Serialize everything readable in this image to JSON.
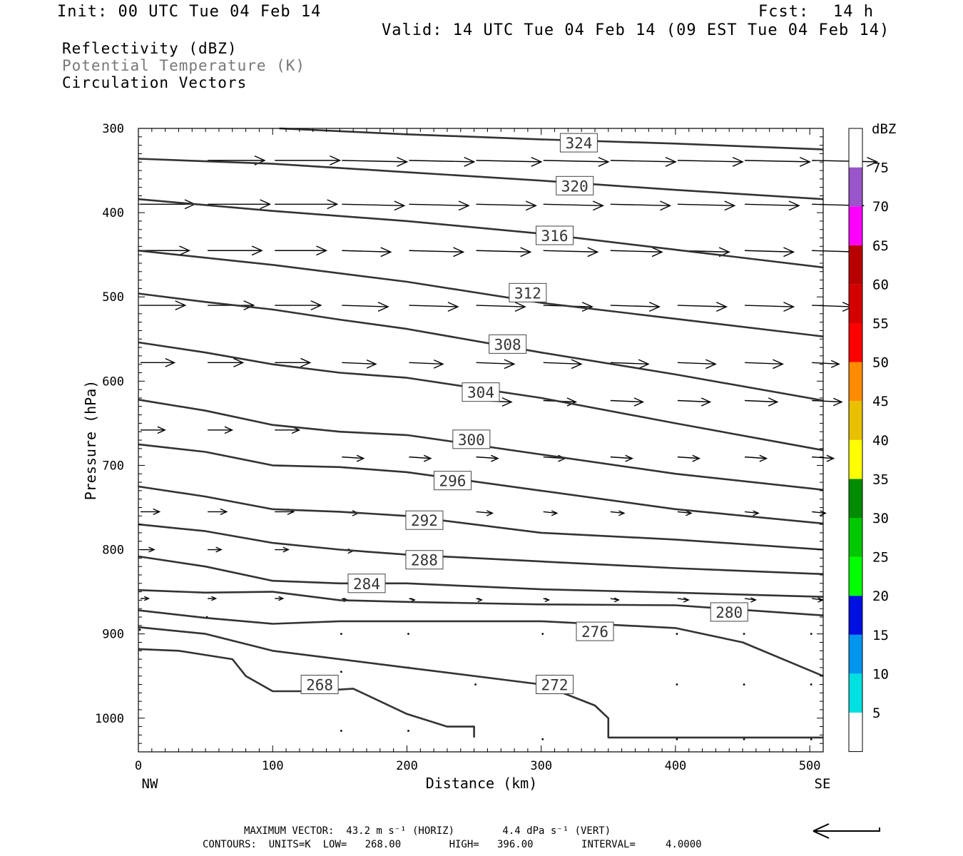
{
  "header": {
    "init": "Init: 00 UTC Tue 04 Feb 14",
    "fcst_label": "Fcst:",
    "fcst_value": "14 h",
    "valid": "Valid: 14 UTC Tue 04 Feb 14 (09 EST Tue 04 Feb 14)"
  },
  "legend": {
    "line1": "Reflectivity (dBZ)",
    "line2": "Potential Temperature (K)",
    "line3": "Circulation Vectors"
  },
  "footer": {
    "max_vector": "MAXIMUM VECTOR:  43.2 m s⁻¹ (HORIZ)        4.4 dPa s⁻¹ (VERT)",
    "contours": "CONTOURS:  UNITS=K  LOW=   268.00        HIGH=   396.00        INTERVAL=     4.0000"
  },
  "chart_data": {
    "type": "line",
    "xlabel": "Distance (km)",
    "ylabel": "Pressure (hPa)",
    "xlim": [
      0,
      510
    ],
    "ylim": [
      1040,
      300
    ],
    "x_ticks": [
      0,
      100,
      200,
      300,
      400,
      500
    ],
    "y_ticks": [
      300,
      400,
      500,
      600,
      700,
      800,
      900,
      1000
    ],
    "x_end_labels": {
      "left": "NW",
      "right": "SE"
    },
    "colorbar": {
      "title": "dBZ",
      "labels": [
        "5",
        "10",
        "15",
        "20",
        "25",
        "30",
        "35",
        "40",
        "45",
        "50",
        "55",
        "60",
        "65",
        "70",
        "75"
      ],
      "colors": [
        "#ffffff",
        "#00e0e0",
        "#0096f0",
        "#0010e0",
        "#00ff00",
        "#00c800",
        "#008c00",
        "#ffff00",
        "#e8c000",
        "#ff8c00",
        "#ff0000",
        "#d40000",
        "#b80000",
        "#ff00ff",
        "#9955c9",
        "#ffffff"
      ]
    },
    "series": [
      {
        "name": "324",
        "label_at": [
          328,
          317
        ],
        "x": [
          105,
          200,
          300,
          400,
          510
        ],
        "y": [
          300,
          307,
          313,
          318,
          325
        ]
      },
      {
        "name": "320",
        "label_at": [
          325,
          368
        ],
        "x": [
          0,
          100,
          200,
          300,
          400,
          510
        ],
        "y": [
          336,
          342,
          352,
          362,
          373,
          384
        ]
      },
      {
        "name": "316",
        "label_at": [
          310,
          427
        ],
        "x": [
          0,
          100,
          200,
          300,
          400,
          510
        ],
        "y": [
          384,
          398,
          410,
          425,
          444,
          465
        ]
      },
      {
        "name": "312",
        "label_at": [
          290,
          495
        ],
        "x": [
          0,
          100,
          200,
          300,
          400,
          510
        ],
        "y": [
          445,
          462,
          482,
          507,
          526,
          547
        ]
      },
      {
        "name": "308",
        "label_at": [
          275,
          556
        ],
        "x": [
          0,
          50,
          100,
          150,
          200,
          300,
          400,
          510
        ],
        "y": [
          496,
          506,
          515,
          527,
          538,
          566,
          592,
          623
        ]
      },
      {
        "name": "304",
        "label_at": [
          255,
          613
        ],
        "x": [
          0,
          50,
          100,
          150,
          200,
          300,
          400,
          510
        ],
        "y": [
          554,
          566,
          580,
          590,
          596,
          620,
          650,
          682
        ]
      },
      {
        "name": "300",
        "label_at": [
          248,
          669
        ],
        "x": [
          0,
          50,
          100,
          150,
          200,
          300,
          400,
          510
        ],
        "y": [
          622,
          635,
          652,
          660,
          664,
          687,
          710,
          729
        ]
      },
      {
        "name": "296",
        "label_at": [
          234,
          718
        ],
        "x": [
          0,
          50,
          100,
          150,
          200,
          300,
          400,
          510
        ],
        "y": [
          675,
          684,
          700,
          702,
          708,
          730,
          752,
          769
        ]
      },
      {
        "name": "292",
        "label_at": [
          213,
          765
        ],
        "x": [
          0,
          50,
          100,
          150,
          200,
          300,
          400,
          510
        ],
        "y": [
          725,
          737,
          752,
          755,
          760,
          780,
          788,
          800
        ]
      },
      {
        "name": "288",
        "label_at": [
          213,
          812
        ],
        "x": [
          0,
          50,
          100,
          150,
          200,
          300,
          400,
          510
        ],
        "y": [
          770,
          778,
          792,
          800,
          806,
          814,
          822,
          829
        ]
      },
      {
        "name": "284",
        "label_at": [
          170,
          840
        ],
        "x": [
          0,
          50,
          100,
          150,
          200,
          300,
          400,
          510
        ],
        "y": [
          808,
          820,
          837,
          840,
          840,
          847,
          851,
          856
        ]
      },
      {
        "name": "280",
        "label_at": [
          440,
          874
        ],
        "x": [
          0,
          50,
          100,
          150,
          200,
          300,
          400,
          510
        ],
        "y": [
          848,
          851,
          850,
          860,
          862,
          865,
          866,
          878
        ]
      },
      {
        "name": "276",
        "label_at": [
          340,
          897
        ],
        "x": [
          0,
          50,
          100,
          150,
          200,
          300,
          400,
          450,
          510
        ],
        "y": [
          872,
          881,
          888,
          885,
          885,
          885,
          893,
          910,
          950
        ]
      },
      {
        "name": "272",
        "label_at": [
          310,
          960
        ],
        "x": [
          0,
          50,
          100,
          200,
          300,
          340,
          350,
          350,
          400,
          510
        ],
        "y": [
          892,
          900,
          920,
          940,
          960,
          985,
          1000,
          1023,
          1023,
          1023
        ]
      },
      {
        "name": "268",
        "label_at": [
          135,
          960
        ],
        "x": [
          0,
          30,
          70,
          80,
          100,
          130,
          160,
          200,
          230,
          250,
          250
        ],
        "y": [
          918,
          920,
          930,
          950,
          968,
          968,
          965,
          995,
          1010,
          1010,
          1023
        ]
      }
    ]
  }
}
